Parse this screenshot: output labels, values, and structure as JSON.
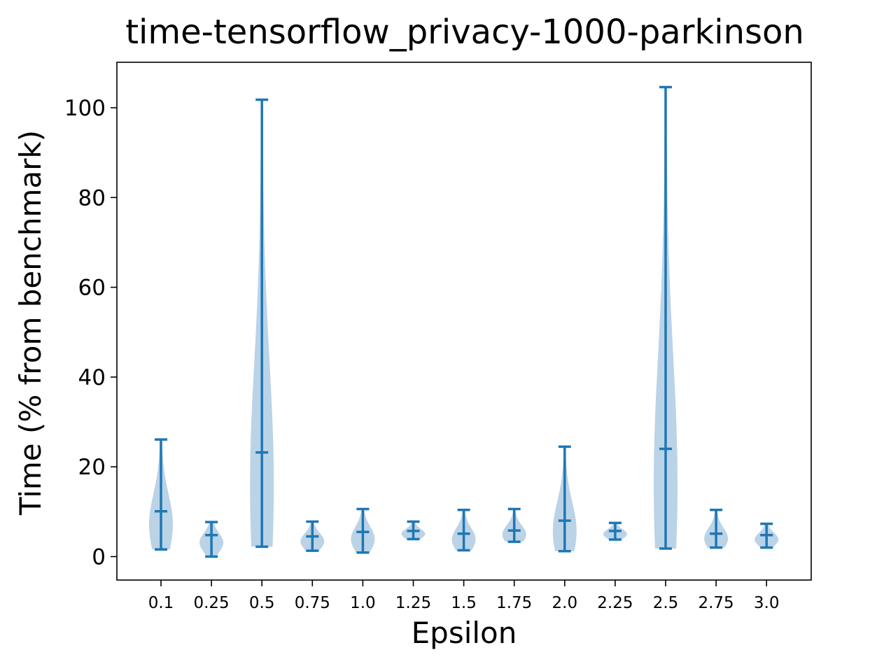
{
  "chart_data": {
    "type": "violin",
    "title": "time-tensorflow_privacy-1000-parkinson",
    "xlabel": "Epsilon",
    "ylabel": "Time (% from benchmark)",
    "categories": [
      "0.1",
      "0.25",
      "0.5",
      "0.75",
      "1.0",
      "1.25",
      "1.5",
      "1.75",
      "2.0",
      "2.25",
      "2.5",
      "2.75",
      "3.0"
    ],
    "ylim": [
      -5,
      110
    ],
    "yticks": [
      0,
      20,
      40,
      60,
      80,
      100
    ],
    "grid": false,
    "color": "#1f77b4",
    "body_color": "#b7d1e6",
    "stats": [
      {
        "min": 1.6,
        "mean": 10.1,
        "max": 26.1
      },
      {
        "min": 0.0,
        "mean": 4.8,
        "max": 7.7
      },
      {
        "min": 2.2,
        "mean": 23.2,
        "max": 101.8
      },
      {
        "min": 1.3,
        "mean": 4.5,
        "max": 7.8
      },
      {
        "min": 0.9,
        "mean": 5.5,
        "max": 10.6
      },
      {
        "min": 3.9,
        "mean": 5.7,
        "max": 7.8
      },
      {
        "min": 1.4,
        "mean": 5.1,
        "max": 10.4
      },
      {
        "min": 3.3,
        "mean": 5.8,
        "max": 10.6
      },
      {
        "min": 1.2,
        "mean": 8.0,
        "max": 24.5
      },
      {
        "min": 3.8,
        "mean": 5.7,
        "max": 7.5
      },
      {
        "min": 1.8,
        "mean": 24.0,
        "max": 104.6
      },
      {
        "min": 2.0,
        "mean": 5.1,
        "max": 10.4
      },
      {
        "min": 2.0,
        "mean": 4.8,
        "max": 7.3
      }
    ]
  }
}
